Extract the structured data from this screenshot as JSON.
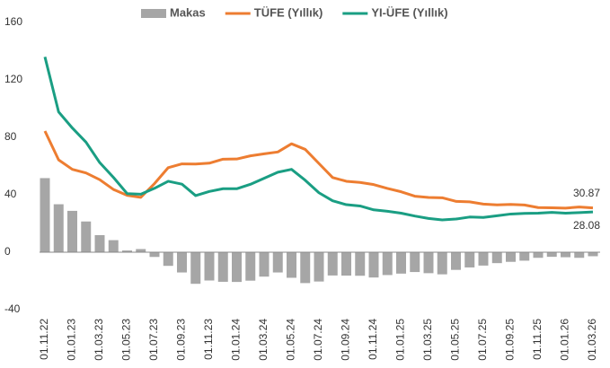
{
  "chart_data": {
    "type": "bar_line",
    "categories": [
      "01.11.22",
      null,
      "01.01.23",
      null,
      "01.03.23",
      null,
      "01.05.23",
      null,
      "01.07.23",
      null,
      "01.09.23",
      null,
      "01.11.23",
      null,
      "01.01.24",
      null,
      "01.03.24",
      null,
      "01.05.24",
      null,
      "01.07.24",
      null,
      "01.09.24",
      null,
      "01.11.24",
      null,
      "01.01.25",
      null,
      "01.03.25",
      null,
      "01.05.25",
      null,
      "01.07.25",
      null,
      "01.09.25",
      null,
      "01.11.25",
      null,
      "01.01.26",
      null,
      "01.03.26"
    ],
    "series": [
      {
        "name": "Makas",
        "kind": "bar",
        "color": "#a6a6a6",
        "values": [
          51.6,
          33.4,
          28.8,
          21.4,
          11.9,
          8.4,
          1.2,
          2.2,
          -3.3,
          -9.5,
          -14.1,
          -22,
          -19.7,
          -20.6,
          -20.7,
          -19.8,
          -17,
          -14.1,
          -17.8,
          -21.5,
          -20.4,
          -16.2,
          -16.3,
          -16.4,
          -17.6,
          -15.9,
          -14.9,
          -13.8,
          -14.6,
          -15.4,
          -12.3,
          -10.6,
          -9.3,
          -7.6,
          -6.7,
          -5.9,
          -3.9,
          -3.2,
          -3.5,
          -3.9,
          -2.79
        ]
      },
      {
        "name": "TÜFE (Yıllık)",
        "kind": "line",
        "color": "#ed7d31",
        "values": [
          84.4,
          64.3,
          57.7,
          55.2,
          50.5,
          43.7,
          39.6,
          38.2,
          47.8,
          58.9,
          61.5,
          61.4,
          62,
          64.8,
          64.9,
          67.1,
          68.5,
          69.8,
          75.5,
          71.6,
          61.8,
          52,
          49.4,
          48.6,
          47.1,
          44.4,
          42.1,
          39,
          38.1,
          37.9,
          35.4,
          35.1,
          33.5,
          33,
          33.3,
          32.9,
          31.1,
          30.9,
          30.7,
          31.5,
          30.87
        ]
      },
      {
        "name": "YI-ÜFE (Yıllık)",
        "kind": "line",
        "color": "#1a9e83",
        "values": [
          136,
          97.7,
          86.5,
          76.6,
          62.4,
          52.1,
          40.8,
          40.4,
          44.5,
          49.4,
          47.4,
          39.4,
          42.3,
          44.2,
          44.2,
          47.3,
          51.5,
          55.7,
          57.7,
          50.1,
          41.4,
          35.8,
          33.1,
          32.2,
          29.5,
          28.5,
          27.2,
          25.2,
          23.5,
          22.5,
          23.1,
          24.5,
          24.2,
          25.4,
          26.6,
          27,
          27.2,
          27.7,
          27.2,
          27.6,
          28.08
        ]
      }
    ],
    "ylim": [
      -40,
      160
    ],
    "yticks": [
      -40,
      0,
      40,
      80,
      120,
      160
    ],
    "grid": false,
    "legend": "top"
  }
}
